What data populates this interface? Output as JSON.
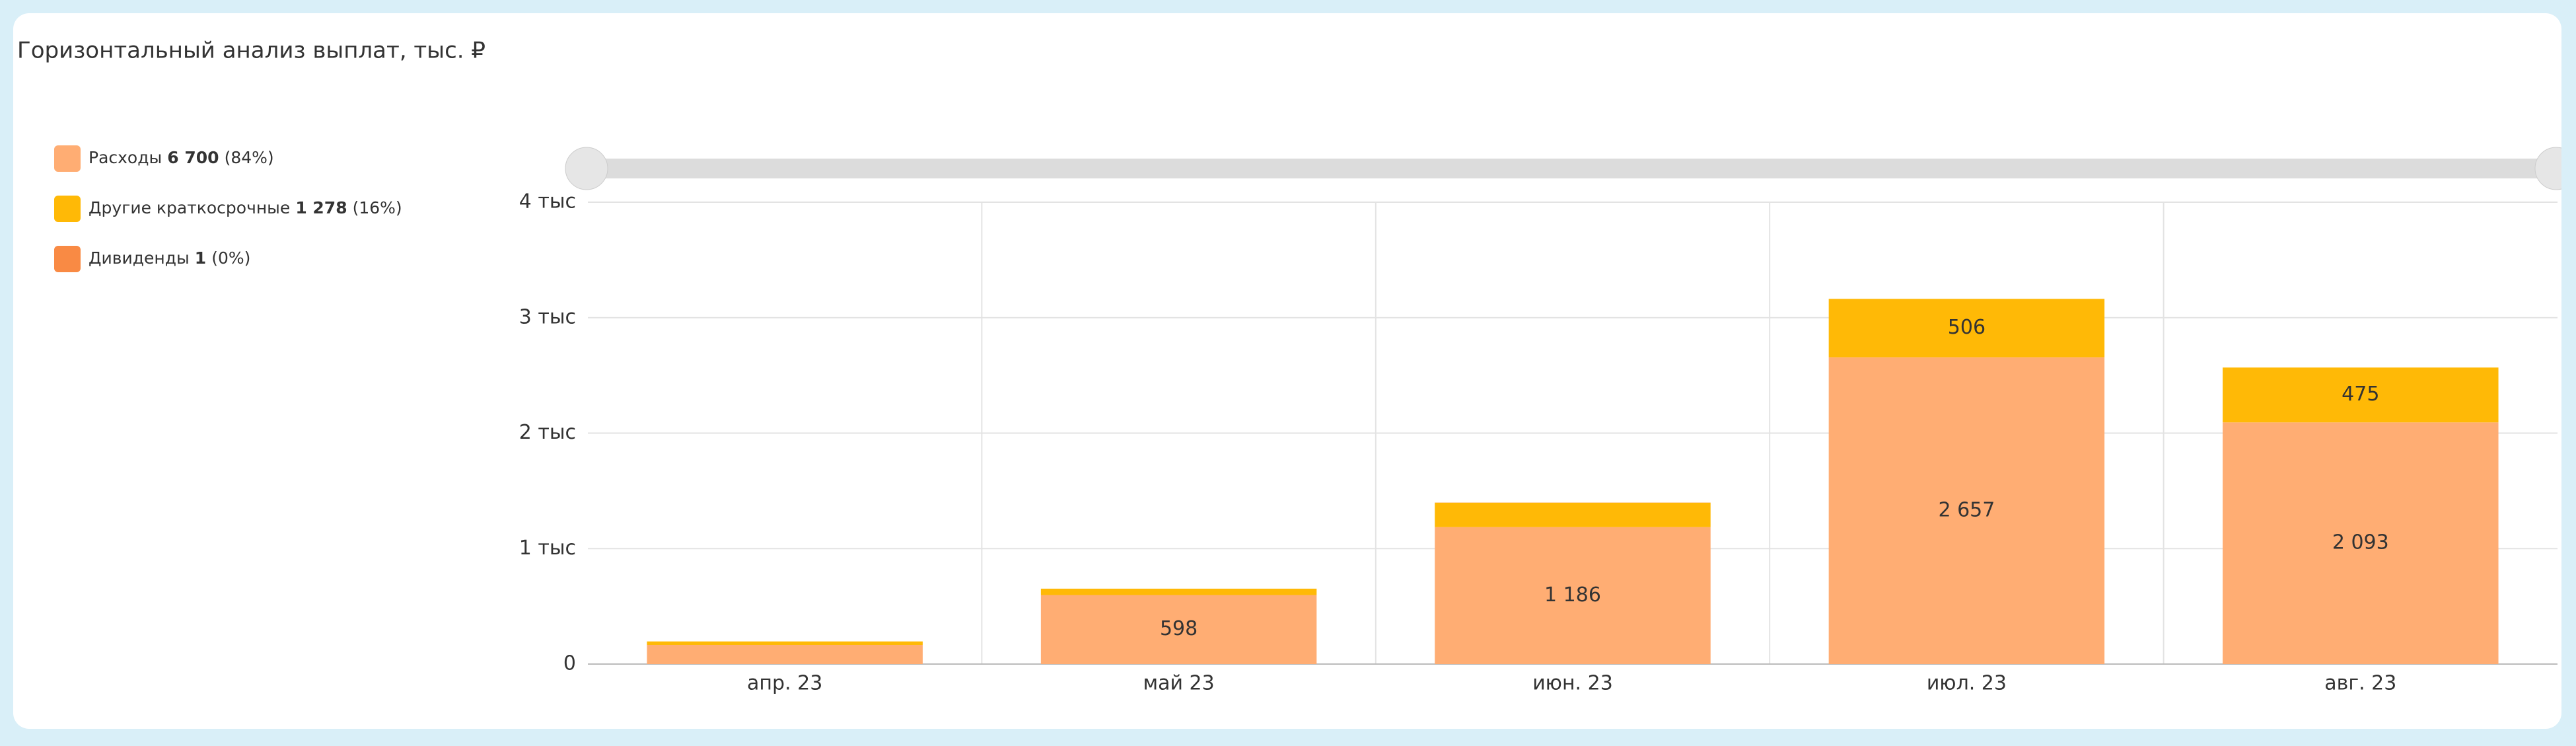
{
  "chart_data": {
    "type": "stacked-bar",
    "title": "Горизонтальный анализ выплат, тыс. ₽",
    "categories": [
      "апр. 23",
      "май 23",
      "июн. 23",
      "июл. 23",
      "авг. 23"
    ],
    "series": [
      {
        "name": "Расходы",
        "color": "#ffad73",
        "total": 6700,
        "total_label": "6 700",
        "share_label": "(84%)",
        "values": [
          166,
          598,
          1186,
          2657,
          2093
        ],
        "value_labels": [
          null,
          "598",
          "1 186",
          "2 657",
          "2 093"
        ]
      },
      {
        "name": "Другие краткосрочные",
        "color": "#ffb906",
        "total": 1278,
        "total_label": "1 278",
        "share_label": "(16%)",
        "values": [
          30,
          55,
          212,
          506,
          475
        ],
        "value_labels": [
          null,
          null,
          null,
          "506",
          "475"
        ]
      },
      {
        "name": "Дивиденды",
        "color": "#f98a44",
        "total": 1,
        "total_label": "1",
        "share_label": "(0%)",
        "values": [
          0,
          0,
          1,
          0,
          0
        ],
        "value_labels": [
          null,
          null,
          null,
          null,
          null
        ]
      }
    ],
    "ylim": [
      0,
      4000
    ],
    "yticks": [
      {
        "value": 0,
        "label": "0"
      },
      {
        "value": 1000,
        "label": "1 тыс"
      },
      {
        "value": 2000,
        "label": "2 тыс"
      },
      {
        "value": 3000,
        "label": "3 тыс"
      },
      {
        "value": 4000,
        "label": "4 тыс"
      }
    ],
    "grid": true
  }
}
